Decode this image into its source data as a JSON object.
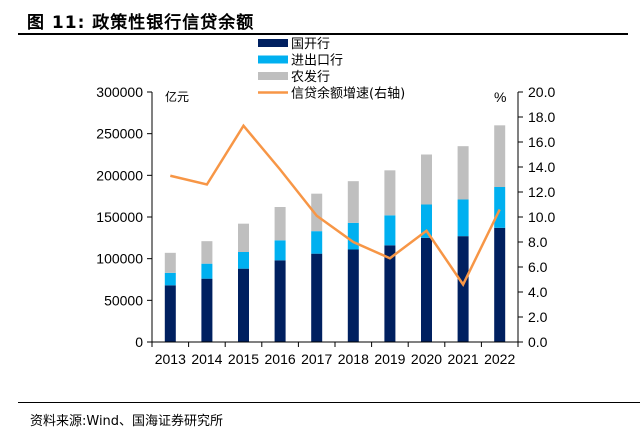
{
  "header": {
    "figure_label": "图 11:",
    "title": "政策性银行信贷余额"
  },
  "footer": {
    "source": "资料来源:Wind、国海证券研究所"
  },
  "chart_data": {
    "type": "bar",
    "subtype": "stacked-bar-with-line",
    "title": "政策性银行信贷余额",
    "categories": [
      "2013",
      "2014",
      "2015",
      "2016",
      "2017",
      "2018",
      "2019",
      "2020",
      "2021",
      "2022"
    ],
    "series": [
      {
        "name": "国开行",
        "type": "bar",
        "axis": "left",
        "color": "#002060",
        "values": [
          68000,
          76000,
          88000,
          98000,
          106000,
          111000,
          116000,
          125000,
          127000,
          137000
        ]
      },
      {
        "name": "进出口行",
        "type": "bar",
        "axis": "left",
        "color": "#00B0F0",
        "values": [
          15000,
          18000,
          20000,
          24000,
          27000,
          32000,
          36000,
          40000,
          44000,
          49000
        ]
      },
      {
        "name": "农发行",
        "type": "bar",
        "axis": "left",
        "color": "#BFBFBF",
        "values": [
          24000,
          27000,
          34000,
          40000,
          45000,
          50000,
          54000,
          60000,
          64000,
          74000
        ]
      },
      {
        "name": "信贷余额增速(右轴)",
        "type": "line",
        "axis": "right",
        "color": "#F79646",
        "values": [
          13.3,
          12.6,
          17.3,
          13.8,
          10.1,
          8.0,
          6.7,
          8.9,
          4.6,
          10.6
        ]
      }
    ],
    "left_axis": {
      "unit_label": "亿元",
      "ylim": [
        0,
        300000
      ],
      "ticks": [
        "0",
        "50000",
        "100000",
        "150000",
        "200000",
        "250000",
        "300000"
      ]
    },
    "right_axis": {
      "unit_label": "%",
      "ylim": [
        0,
        20
      ],
      "ticks": [
        "0.0",
        "2.0",
        "4.0",
        "6.0",
        "8.0",
        "10.0",
        "12.0",
        "14.0",
        "16.0",
        "18.0",
        "20.0"
      ]
    },
    "legend": {
      "placement": "top-center",
      "entries": [
        "国开行",
        "进出口行",
        "农发行",
        "信贷余额增速(右轴)"
      ]
    },
    "grid": false
  }
}
